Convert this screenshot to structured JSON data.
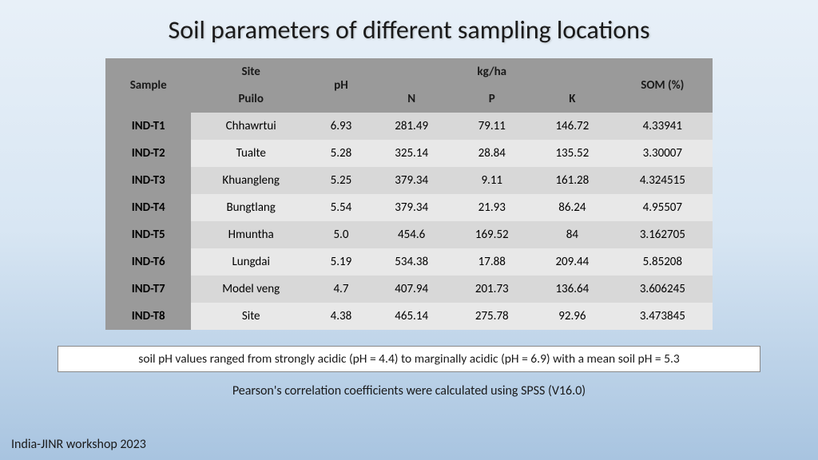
{
  "title": "Soil parameters of different sampling locations",
  "table": {
    "headers": {
      "sample": "Sample",
      "site": "Site",
      "puilo": "Puilo",
      "ph": "pH",
      "kgha": "kg/ha",
      "n": "N",
      "p": "P",
      "k": "K",
      "som": "SOM (%)"
    },
    "rows": [
      {
        "sample": "IND-T1",
        "site": "Chhawrtui",
        "ph": "6.93",
        "n": "281.49",
        "p": "79.11",
        "k": "146.72",
        "som": "4.33941"
      },
      {
        "sample": "IND-T2",
        "site": "Tualte",
        "ph": "5.28",
        "n": "325.14",
        "p": "28.84",
        "k": "135.52",
        "som": "3.30007"
      },
      {
        "sample": "IND-T3",
        "site": "Khuangleng",
        "ph": "5.25",
        "n": "379.34",
        "p": "9.11",
        "k": "161.28",
        "som": "4.324515"
      },
      {
        "sample": "IND-T4",
        "site": "Bungtlang",
        "ph": "5.54",
        "n": "379.34",
        "p": "21.93",
        "k": "86.24",
        "som": "4.95507"
      },
      {
        "sample": "IND-T5",
        "site": "Hmuntha",
        "ph": "5.0",
        "n": "454.6",
        "p": "169.52",
        "k": "84",
        "som": "3.162705"
      },
      {
        "sample": "IND-T6",
        "site": "Lungdai",
        "ph": "5.19",
        "n": "534.38",
        "p": "17.88",
        "k": "209.44",
        "som": "5.85208"
      },
      {
        "sample": "IND-T7",
        "site": "Model veng",
        "ph": "4.7",
        "n": "407.94",
        "p": "201.73",
        "k": "136.64",
        "som": "3.606245"
      },
      {
        "sample": "IND-T8",
        "site": "Site",
        "ph": "4.38",
        "n": "465.14",
        "p": "275.78",
        "k": "92.96",
        "som": "3.473845"
      }
    ]
  },
  "note": "soil pH values ranged from strongly acidic (pH = 4.4) to marginally acidic (pH = 6.9) with a mean soil pH = 5.3",
  "subnote": "Pearson's correlation coefficients were calculated using SPSS (V16.0)",
  "footer": "India-JINR workshop 2023",
  "colors": {
    "header_bg": "#9a9a9a",
    "row_odd": "#d8d8d8",
    "row_even": "#e8e8e8",
    "bg_top": "#e8f0f8",
    "bg_bottom": "#a8c4e0",
    "text": "#1a1a1a",
    "note_bg": "#ffffff"
  }
}
